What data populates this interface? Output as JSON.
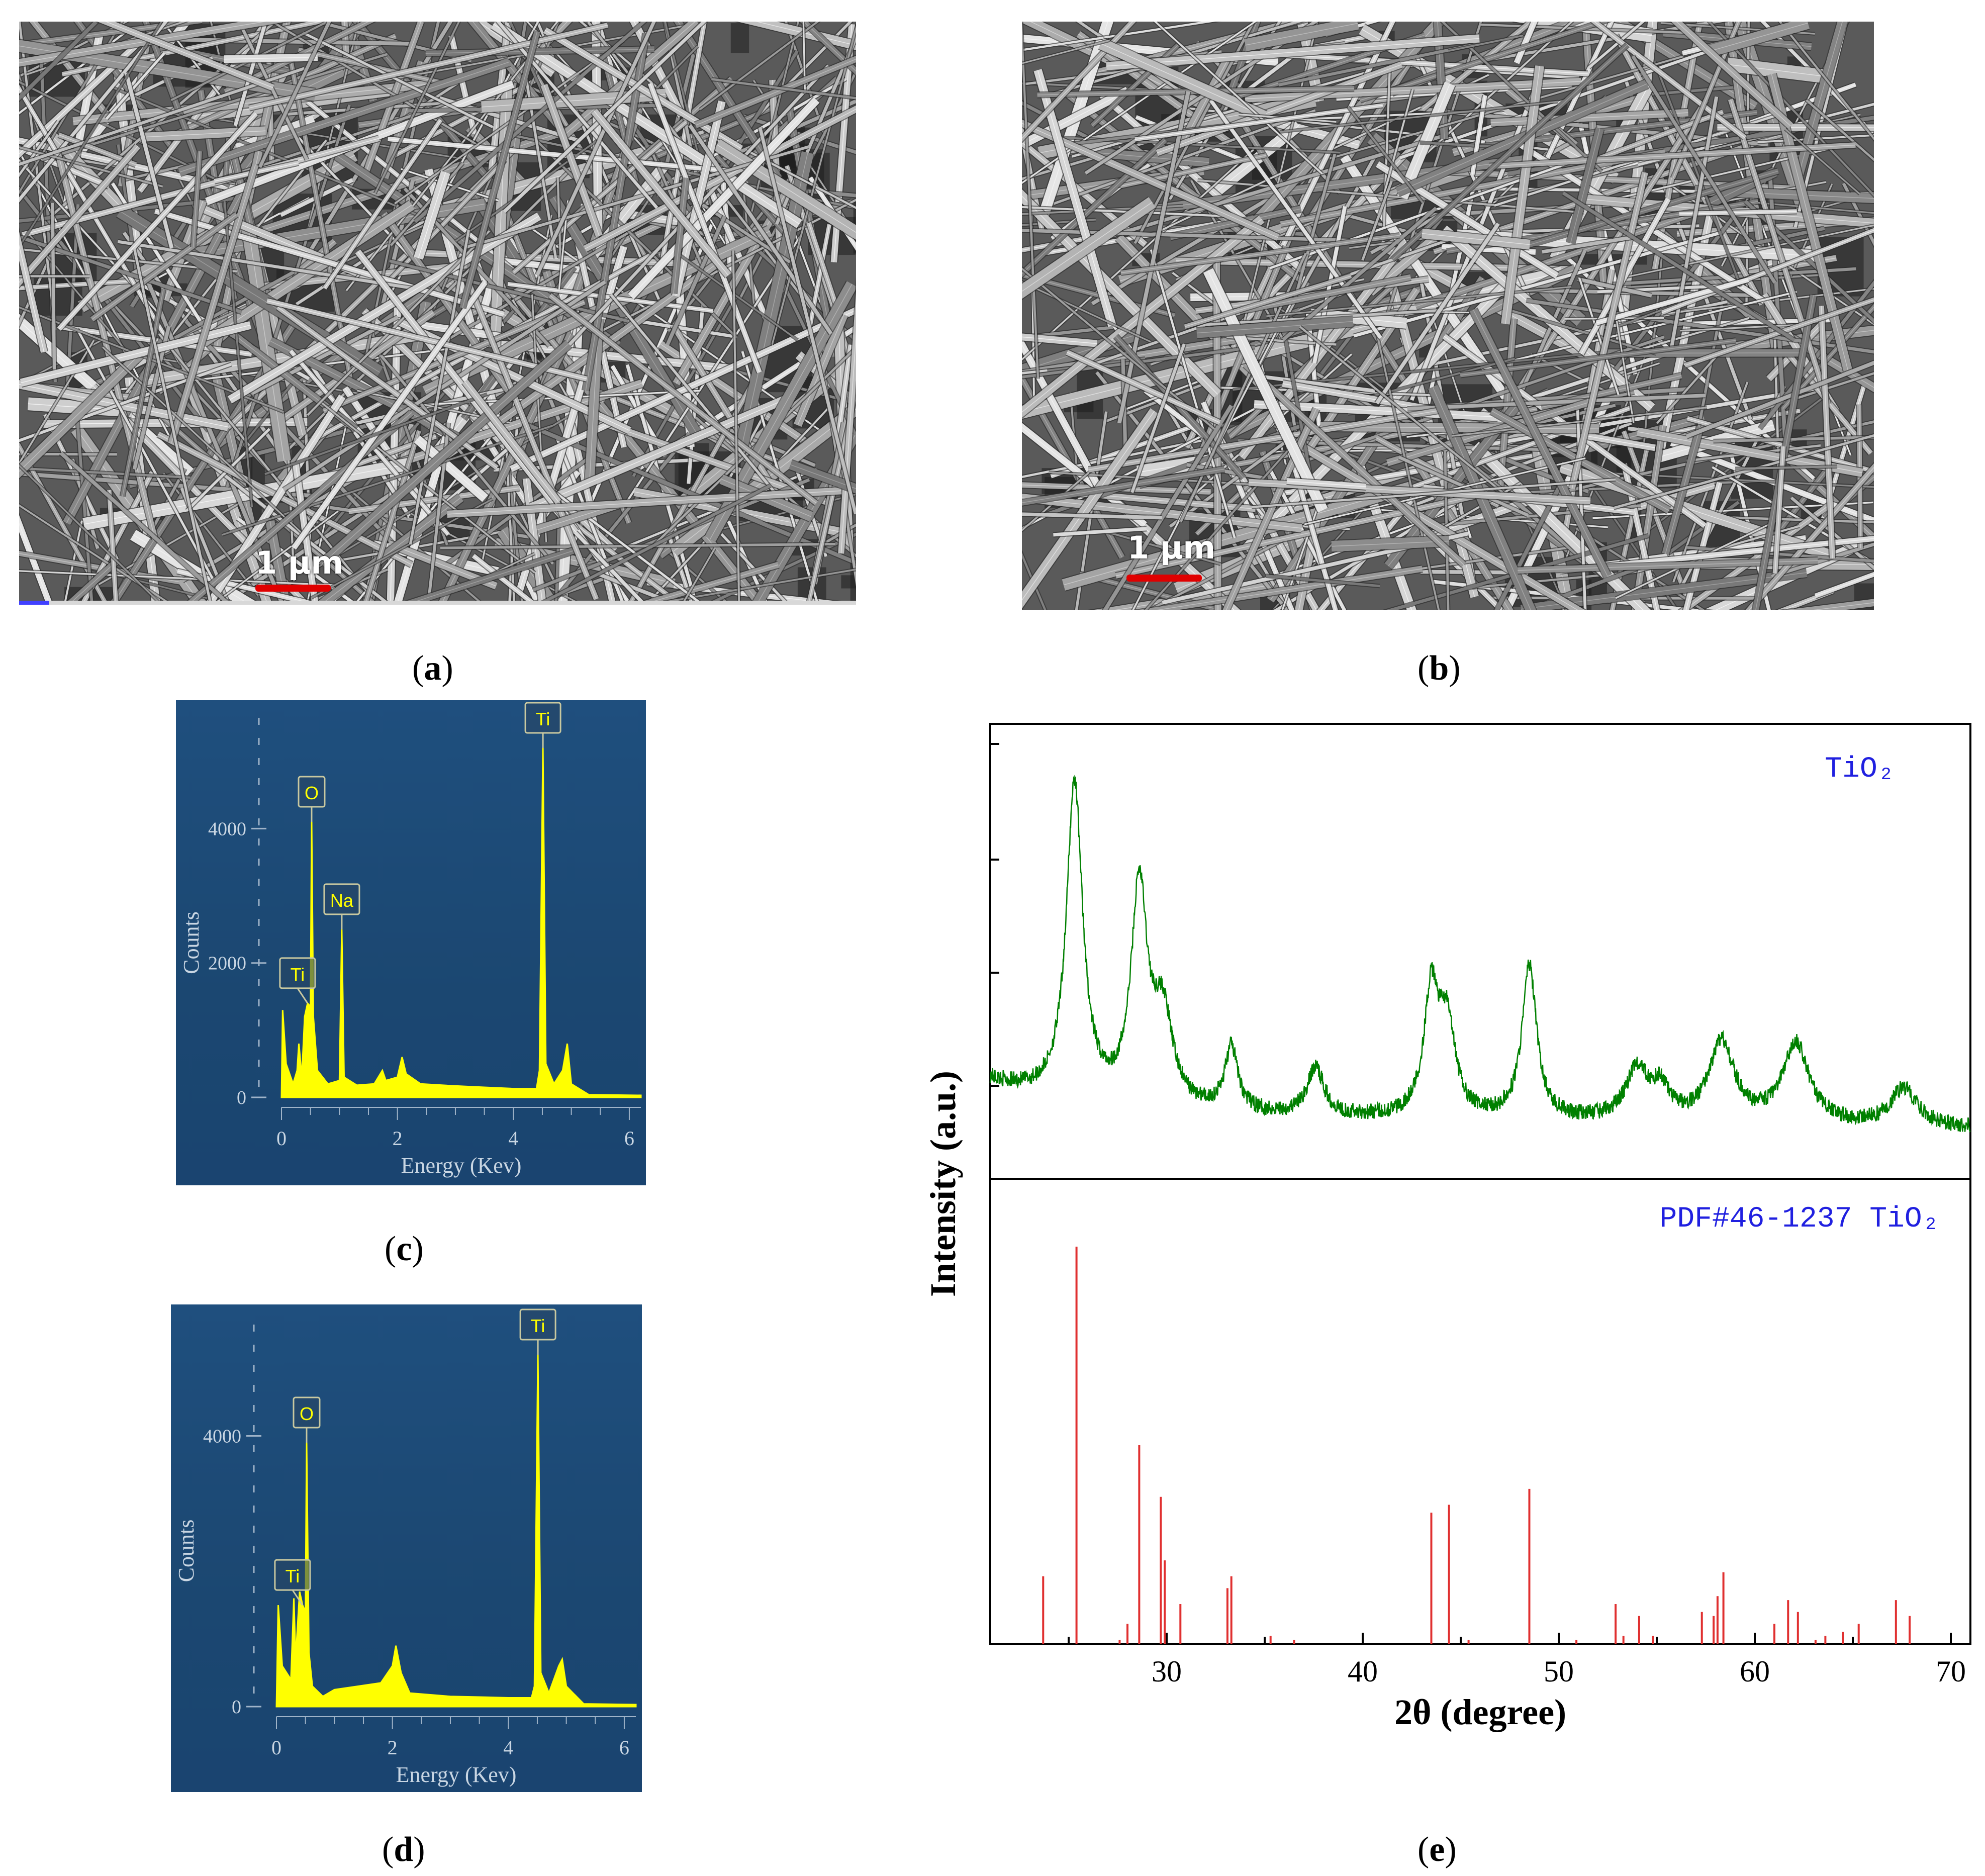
{
  "figure": {
    "panels": [
      {
        "id": "a",
        "caption": "a",
        "type": "SEM image",
        "scale_bar": "1 μm"
      },
      {
        "id": "b",
        "caption": "b",
        "type": "SEM image",
        "scale_bar": "1 μm"
      },
      {
        "id": "c",
        "caption": "c",
        "type": "EDS spectrum"
      },
      {
        "id": "d",
        "caption": "d",
        "type": "EDS spectrum"
      },
      {
        "id": "e",
        "caption": "e",
        "type": "XRD pattern"
      }
    ]
  },
  "colors": {
    "eds_background": "#1b4771",
    "eds_signal": "#ffff00",
    "xrd_measured": "#008000",
    "xrd_reference": "#e03030",
    "label_blue": "#2020e0",
    "scale_bar": "#e00000"
  },
  "chart_data": [
    {
      "type": "area",
      "panel": "c",
      "xlabel": "Energy (Kev)",
      "ylabel": "Counts",
      "xlim": [
        0,
        6.2
      ],
      "ylim": [
        0,
        5200
      ],
      "x_ticks": [
        "0",
        "2",
        "4",
        "6"
      ],
      "y_ticks": [
        "0",
        "2000",
        "4000"
      ],
      "peaks": [
        {
          "label": "Ti",
          "x": 0.45,
          "y": 1400
        },
        {
          "label": "O",
          "x": 0.52,
          "y": 4100
        },
        {
          "label": "Na",
          "x": 1.04,
          "y": 2500
        },
        {
          "label": "Ti",
          "x": 4.51,
          "y": 5200
        }
      ],
      "spectrum": [
        [
          0.0,
          0
        ],
        [
          0.02,
          1300
        ],
        [
          0.08,
          500
        ],
        [
          0.2,
          200
        ],
        [
          0.27,
          400
        ],
        [
          0.3,
          800
        ],
        [
          0.35,
          300
        ],
        [
          0.4,
          1200
        ],
        [
          0.45,
          1400
        ],
        [
          0.5,
          1350
        ],
        [
          0.52,
          4100
        ],
        [
          0.55,
          1200
        ],
        [
          0.62,
          400
        ],
        [
          0.8,
          200
        ],
        [
          1.0,
          250
        ],
        [
          1.04,
          2500
        ],
        [
          1.08,
          300
        ],
        [
          1.3,
          180
        ],
        [
          1.6,
          200
        ],
        [
          1.74,
          400
        ],
        [
          1.8,
          250
        ],
        [
          2.0,
          300
        ],
        [
          2.08,
          600
        ],
        [
          2.15,
          350
        ],
        [
          2.4,
          200
        ],
        [
          3.0,
          170
        ],
        [
          3.5,
          150
        ],
        [
          4.0,
          130
        ],
        [
          4.4,
          130
        ],
        [
          4.45,
          400
        ],
        [
          4.51,
          5200
        ],
        [
          4.56,
          500
        ],
        [
          4.7,
          200
        ],
        [
          4.85,
          400
        ],
        [
          4.93,
          800
        ],
        [
          5.0,
          200
        ],
        [
          5.3,
          40
        ],
        [
          6.2,
          30
        ]
      ]
    },
    {
      "type": "area",
      "panel": "d",
      "xlabel": "Energy (Kev)",
      "ylabel": "Counts",
      "xlim": [
        0,
        6.2
      ],
      "ylim": [
        0,
        5200
      ],
      "x_ticks": [
        "0",
        "2",
        "4",
        "6"
      ],
      "y_ticks": [
        "0",
        "4000"
      ],
      "peaks": [
        {
          "label": "Ti",
          "x": 0.45,
          "y": 1500
        },
        {
          "label": "O",
          "x": 0.52,
          "y": 3900
        },
        {
          "label": "Ti",
          "x": 4.51,
          "y": 5200
        }
      ],
      "spectrum": [
        [
          0.0,
          0
        ],
        [
          0.03,
          1500
        ],
        [
          0.1,
          600
        ],
        [
          0.25,
          400
        ],
        [
          0.3,
          1600
        ],
        [
          0.33,
          700
        ],
        [
          0.4,
          1700
        ],
        [
          0.45,
          1500
        ],
        [
          0.5,
          1400
        ],
        [
          0.52,
          3900
        ],
        [
          0.56,
          800
        ],
        [
          0.62,
          300
        ],
        [
          0.8,
          150
        ],
        [
          1.0,
          250
        ],
        [
          1.4,
          300
        ],
        [
          1.8,
          350
        ],
        [
          2.0,
          600
        ],
        [
          2.06,
          900
        ],
        [
          2.15,
          500
        ],
        [
          2.3,
          200
        ],
        [
          3.0,
          150
        ],
        [
          3.6,
          140
        ],
        [
          4.0,
          130
        ],
        [
          4.4,
          130
        ],
        [
          4.45,
          300
        ],
        [
          4.51,
          5200
        ],
        [
          4.56,
          500
        ],
        [
          4.7,
          200
        ],
        [
          4.87,
          600
        ],
        [
          4.93,
          700
        ],
        [
          5.0,
          300
        ],
        [
          5.3,
          40
        ],
        [
          6.2,
          30
        ]
      ]
    },
    {
      "type": "line",
      "panel": "e",
      "xlabel": "2θ (degree)",
      "ylabel": "Intensity (a.u.)",
      "xlim": [
        21,
        71
      ],
      "x_ticks": [
        "30",
        "40",
        "50",
        "60",
        "70"
      ],
      "series": [
        {
          "name": "TiO₂",
          "kind": "line",
          "baseline": 20,
          "peaks": [
            [
              25.3,
              100,
              0.5
            ],
            [
              28.6,
              68,
              0.5
            ],
            [
              29.8,
              28,
              0.6
            ],
            [
              33.3,
              20,
              0.4
            ],
            [
              37.6,
              15,
              0.5
            ],
            [
              43.5,
              38,
              0.45
            ],
            [
              44.3,
              28,
              0.5
            ],
            [
              48.5,
              48,
              0.45
            ],
            [
              54.0,
              16,
              0.7
            ],
            [
              55.2,
              9,
              0.5
            ],
            [
              58.3,
              25,
              0.8
            ],
            [
              62.1,
              25,
              0.8
            ],
            [
              67.6,
              12,
              0.8
            ]
          ]
        },
        {
          "name": "PDF#46-1237 TiO₂",
          "kind": "stick",
          "sticks": [
            [
              23.7,
              17
            ],
            [
              25.4,
              100
            ],
            [
              27.6,
              1
            ],
            [
              28.0,
              5
            ],
            [
              28.6,
              50
            ],
            [
              29.7,
              37
            ],
            [
              29.9,
              21
            ],
            [
              30.7,
              10
            ],
            [
              33.1,
              14
            ],
            [
              33.3,
              17
            ],
            [
              35.3,
              2
            ],
            [
              36.5,
              1
            ],
            [
              43.5,
              33
            ],
            [
              44.4,
              35
            ],
            [
              45.4,
              1
            ],
            [
              48.5,
              39
            ],
            [
              50.9,
              1
            ],
            [
              52.9,
              10
            ],
            [
              53.3,
              2
            ],
            [
              54.1,
              7
            ],
            [
              54.8,
              2
            ],
            [
              57.3,
              8
            ],
            [
              57.9,
              7
            ],
            [
              58.1,
              12
            ],
            [
              58.4,
              18
            ],
            [
              61.0,
              5
            ],
            [
              61.7,
              11
            ],
            [
              62.2,
              8
            ],
            [
              63.1,
              1
            ],
            [
              63.6,
              2
            ],
            [
              64.5,
              3
            ],
            [
              65.3,
              5
            ],
            [
              67.2,
              11
            ],
            [
              67.9,
              7
            ]
          ]
        }
      ]
    }
  ]
}
